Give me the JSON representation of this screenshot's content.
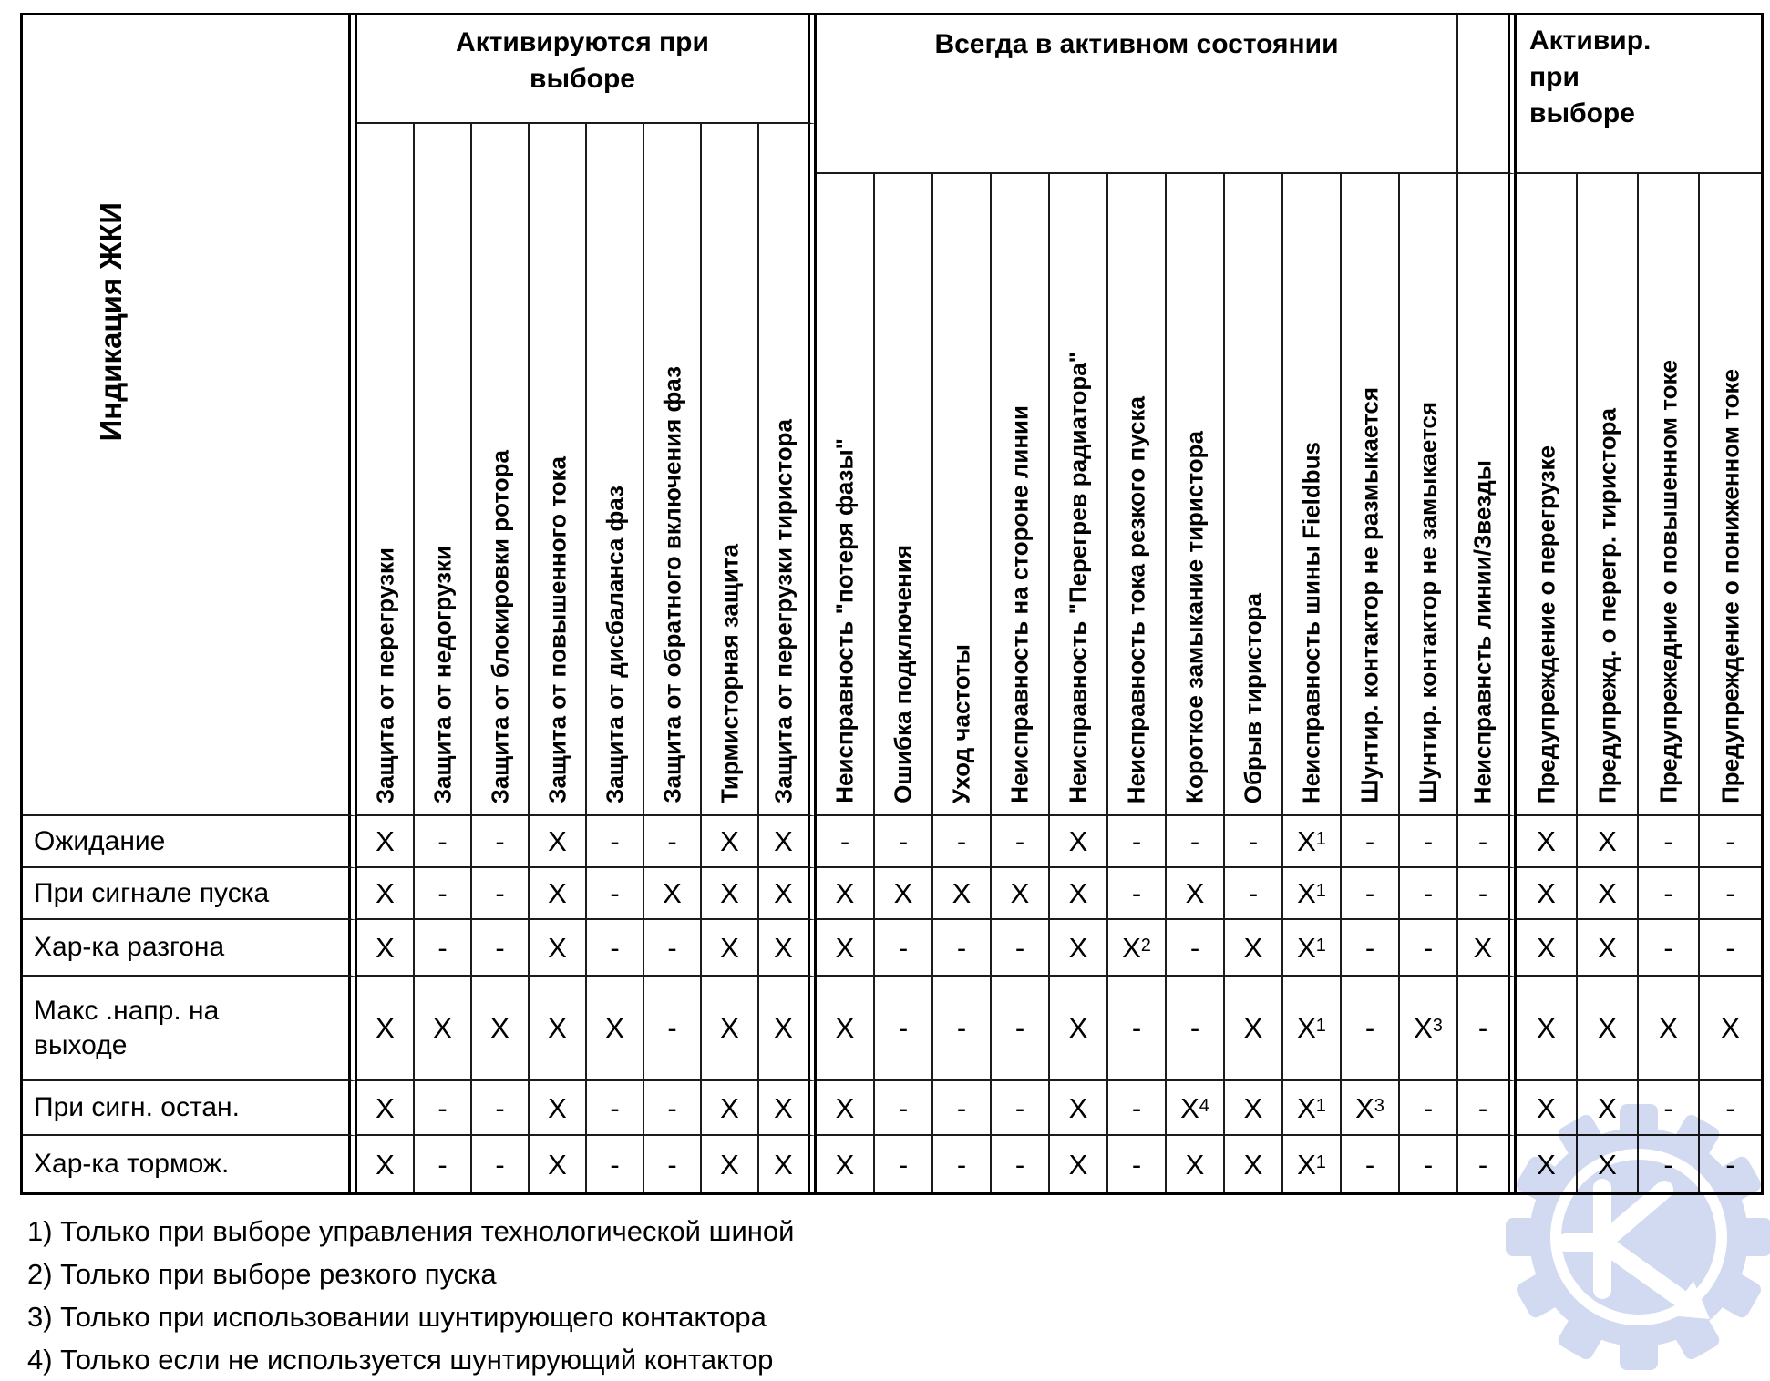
{
  "page": {
    "background": "#ffffff",
    "line_color": "#000000"
  },
  "table": {
    "corner_label": "Индикация ЖКИ",
    "group_headers": [
      {
        "label": "Активируются при выборе",
        "columns": 8
      },
      {
        "label": "Всегда в активном состоянии",
        "columns": 11
      },
      {
        "label": "",
        "columns": 1
      },
      {
        "label": "Активир. при выборе",
        "columns": 4
      }
    ],
    "columns": [
      "Защита от перегрузки",
      "Защита от недогрузки",
      "Защита от блокировки ротора",
      "Защита от повышенного тока",
      "Защита от дисбаланса фаз",
      "Защита от обратного включения фаз",
      "Тирмисторная защита",
      "Защита от перегрузки тиристора",
      "Неисправность \"потеря фазы\"",
      "Ошибка подключения",
      "Уход частоты",
      "Неисправность на стороне линии",
      "Неисправность \"Перегрев радиатора\"",
      "Неисправность тока резкого пуска",
      "Короткое замыкание тиристора",
      "Обрыв тиристора",
      "Неисправность шины Fieldbus",
      "Шунтир. контактор не размыкается",
      "Шунтир. контактор не замыкается",
      "Неисправнсть линии/Звезды",
      "Предупреждение о перегрузке",
      "Предупрежд. о перегр. тиристора",
      "Предупрежедние о повышенном токе",
      "Предупреждение о пониженном токе"
    ],
    "rows": [
      {
        "label": "Ожидание",
        "cells": [
          "X",
          "-",
          "-",
          "X",
          "-",
          "-",
          "X",
          "X",
          "-",
          "-",
          "-",
          "-",
          "X",
          "-",
          "-",
          "-",
          "X1",
          "-",
          "-",
          "-",
          "X",
          "X",
          "-",
          "-"
        ]
      },
      {
        "label": "При сигнале пуска",
        "cells": [
          "X",
          "-",
          "-",
          "X",
          "-",
          "X",
          "X",
          "X",
          "X",
          "X",
          "X",
          "X",
          "X",
          "-",
          "X",
          "-",
          "X1",
          "-",
          "-",
          "-",
          "X",
          "X",
          "-",
          "-"
        ]
      },
      {
        "label": "Хар-ка разгона",
        "cells": [
          "X",
          "-",
          "-",
          "X",
          "-",
          "-",
          "X",
          "X",
          "X",
          "-",
          "-",
          "-",
          "X",
          "X2",
          "-",
          "X",
          "X1",
          "-",
          "-",
          "X",
          "X",
          "X",
          "-",
          "-"
        ]
      },
      {
        "label": "Макс .напр. на\nвыходе",
        "cells": [
          "X",
          "X",
          "X",
          "X",
          "X",
          "-",
          "X",
          "X",
          "X",
          "-",
          "-",
          "-",
          "X",
          "-",
          "-",
          "X",
          "X1",
          "-",
          "X3",
          "-",
          "X",
          "X",
          "X",
          "X"
        ]
      },
      {
        "label": "При сигн. остан.",
        "cells": [
          "X",
          "-",
          "-",
          "X",
          "-",
          "-",
          "X",
          "X",
          "X",
          "-",
          "-",
          "-",
          "X",
          "-",
          "X4",
          "X",
          "X1",
          "X3",
          "-",
          "-",
          "X",
          "X",
          "-",
          "-"
        ]
      },
      {
        "label": "Хар-ка тормож.",
        "cells": [
          "X",
          "-",
          "-",
          "X",
          "-",
          "-",
          "X",
          "X",
          "X",
          "-",
          "-",
          "-",
          "X",
          "-",
          "X",
          "X",
          "X1",
          "-",
          "-",
          "-",
          "X",
          "X",
          "-",
          "-"
        ]
      }
    ]
  },
  "footnotes": [
    "1) Только при выборе управления технологической шиной",
    "2) Только при выборе резкого пуска",
    "3) Только при использовании шунтирующего контактора",
    "4) Только если не используется шунтирующий контактор"
  ],
  "watermark": {
    "gear_color": "#c9d4ee",
    "glyph_color": "#ffffff"
  }
}
